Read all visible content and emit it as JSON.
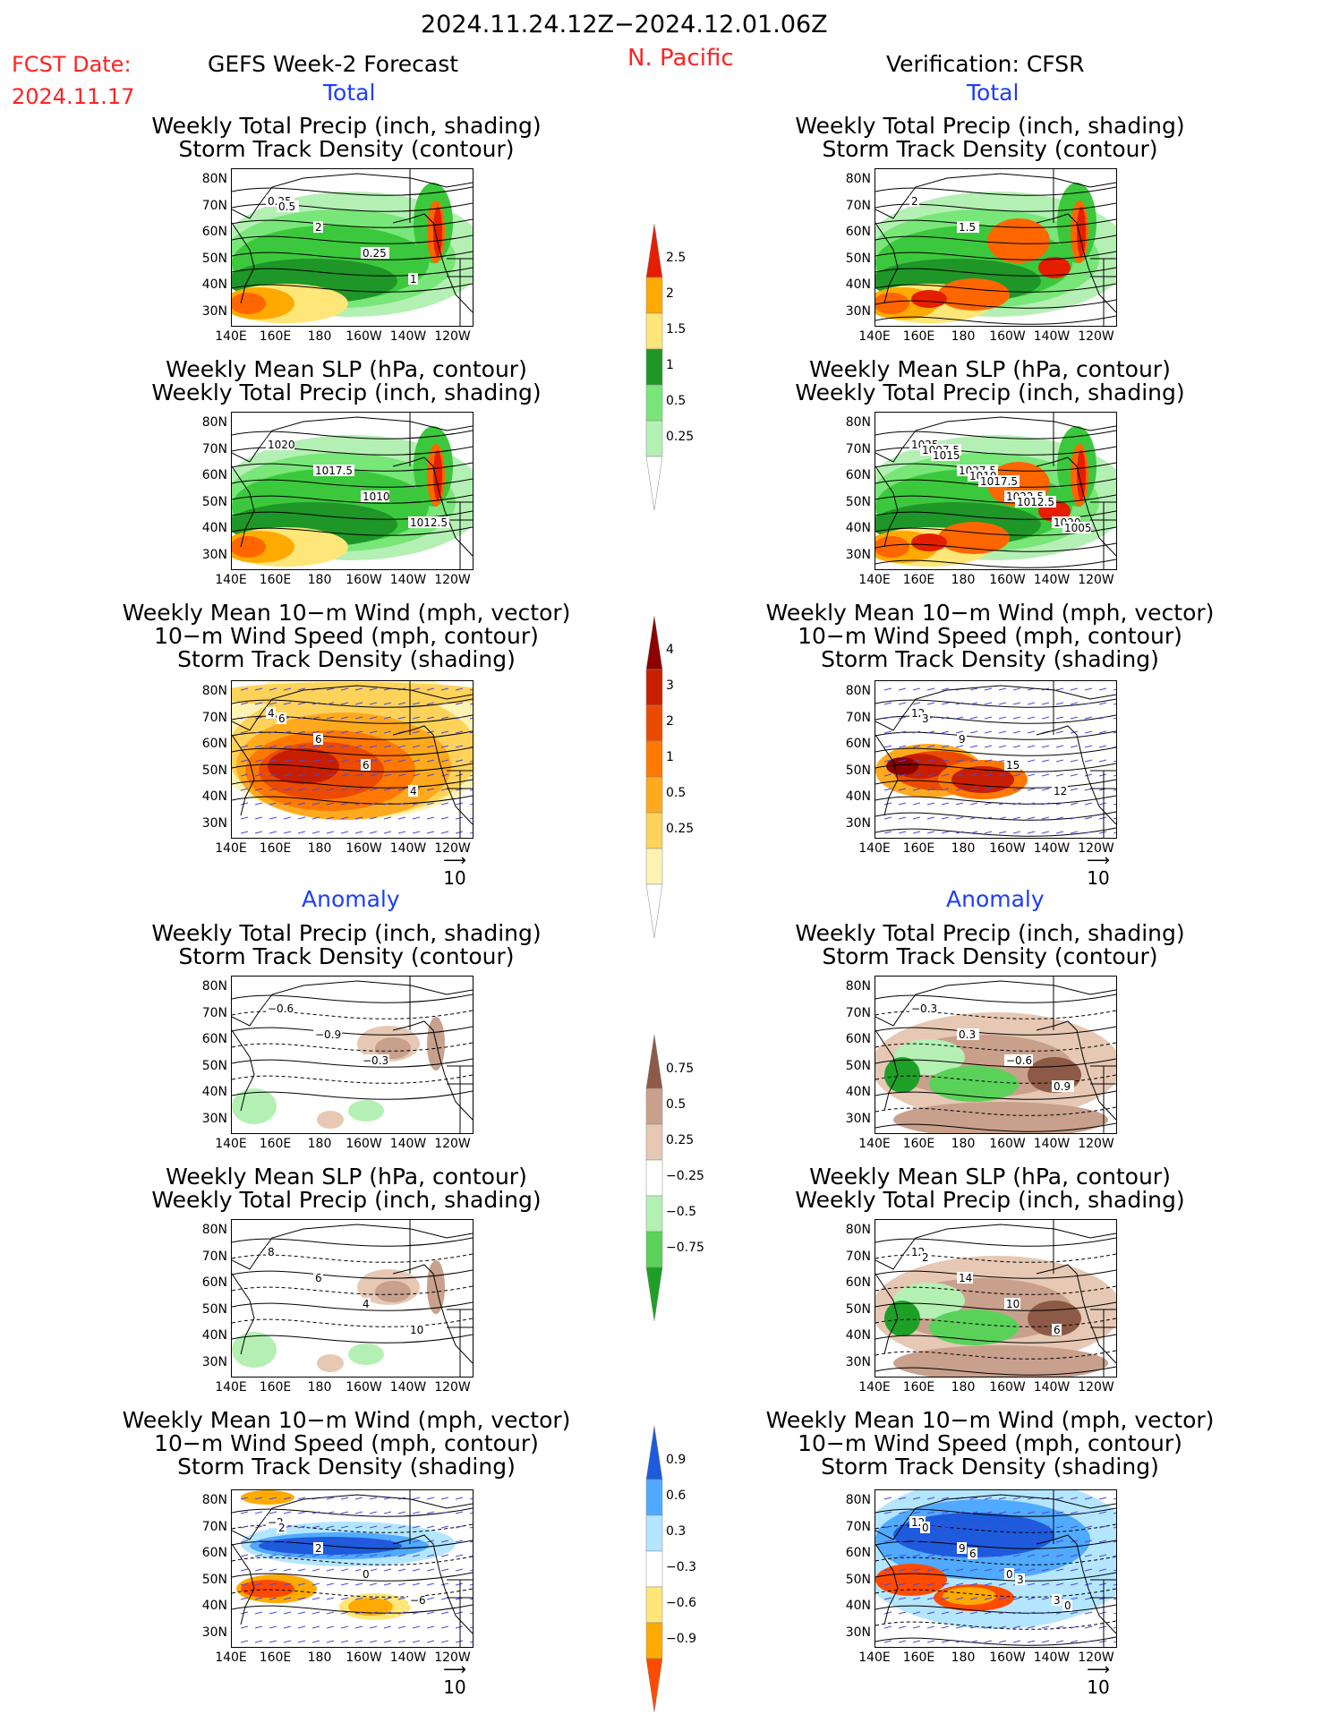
{
  "header": {
    "valid_range": "2024.11.24.12Z−2024.12.01.06Z",
    "fcst_label": "FCST Date:",
    "fcst_date": "2024.11.17",
    "model": "GEFS Week-2 Forecast",
    "region": "N. Pacific",
    "verification": "Verification: CFSR"
  },
  "sections": {
    "total": "Total",
    "anomaly": "Anomaly"
  },
  "panel_titles": {
    "precip_storm": [
      "Weekly Total Precip (inch, shading)",
      "Storm Track Density (contour)"
    ],
    "slp_precip": [
      "Weekly Mean SLP (hPa, contour)",
      "Weekly Total Precip (inch, shading)"
    ],
    "wind_storm": [
      "Weekly Mean 10−m Wind (mph, vector)",
      "10−m Wind Speed (mph, contour)",
      "Storm Track Density (shading)"
    ]
  },
  "axes": {
    "lat": [
      "80N",
      "70N",
      "60N",
      "50N",
      "40N",
      "30N"
    ],
    "lon": [
      "140E",
      "160E",
      "180",
      "160W",
      "140W",
      "120W"
    ]
  },
  "vector_scale": "10",
  "colorbars": {
    "precip_total": [
      "2.5",
      "2",
      "1.5",
      "1",
      "0.5",
      "0.25"
    ],
    "storm_total": [
      "4",
      "3",
      "2",
      "1",
      "0.5",
      "0.25"
    ],
    "precip_anom": [
      "0.75",
      "0.5",
      "0.25",
      "−0.25",
      "−0.5",
      "−0.75"
    ],
    "storm_anom": [
      "0.9",
      "0.6",
      "0.3",
      "−0.3",
      "−0.6",
      "−0.9"
    ]
  },
  "contour_labels": {
    "r1_left": [
      "0.25",
      "2",
      "0.25",
      "1",
      "0.5"
    ],
    "r1_right": [
      "2",
      "1.5"
    ],
    "r2_left": [
      "1020",
      "1017.5",
      "1010",
      "1012.5"
    ],
    "r2_right": [
      "1025",
      "1027.5",
      "1022.5",
      "1020",
      "1007.5",
      "1010",
      "1012.5",
      "1005",
      "1015",
      "1017.5"
    ],
    "r3_left": [
      "4",
      "6",
      "6",
      "4",
      "6"
    ],
    "r3_right": [
      "12",
      "9",
      "15",
      "12",
      "3"
    ],
    "r4_left": [
      "−0.6",
      "−0.9",
      "−0.3"
    ],
    "r4_right": [
      "−0.3",
      "0.3",
      "−0.6",
      "0.9"
    ],
    "r5_left": [
      "8",
      "6",
      "4",
      "10"
    ],
    "r5_right": [
      "12",
      "14",
      "10",
      "6",
      "2"
    ],
    "r6_left": [
      "−2",
      "2",
      "0",
      "−6",
      "2"
    ],
    "r6_right": [
      "12",
      "9",
      "0",
      "3",
      "0",
      "6",
      "3",
      "0"
    ]
  },
  "colors": {
    "precip": [
      "#b4f0b4",
      "#78e678",
      "#3cc83c",
      "#1e9628",
      "#ffe678",
      "#ffaa00",
      "#ff6600",
      "#e61e00"
    ],
    "storm": [
      "#fff3b4",
      "#ffd25a",
      "#ffaa1e",
      "#ff7800",
      "#eb4b00",
      "#c81e00",
      "#8c0000"
    ],
    "precip_anom_neg": [
      "#e6c8b4",
      "#c8a08c",
      "#8c5a46"
    ],
    "precip_anom_pos": [
      "#b4f0b4",
      "#5ad25a",
      "#1ea028"
    ],
    "storm_anom_pos": [
      "#ffe678",
      "#ffaa00",
      "#ff4b00"
    ],
    "storm_anom_neg": [
      "#b4e6ff",
      "#50aaff",
      "#1e5adc"
    ],
    "header_red": "#ff2222",
    "section_blue": "#1d3cff"
  }
}
